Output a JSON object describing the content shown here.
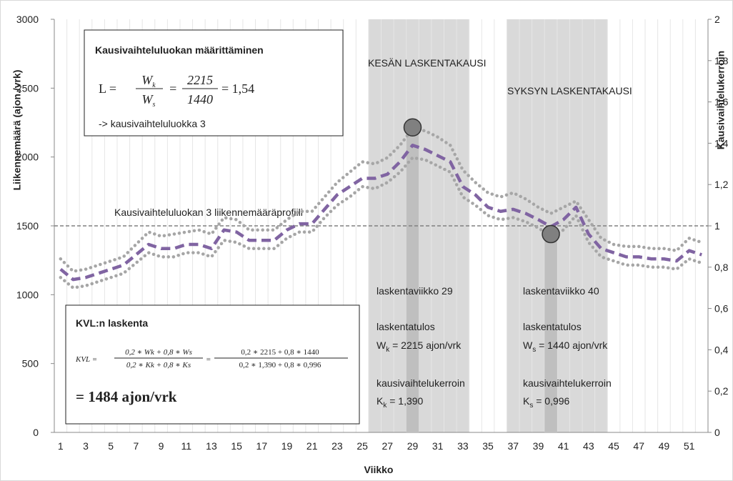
{
  "chart_data": {
    "type": "line",
    "xlabel": "Viikko",
    "ylabel": "Liikennemäärä (ajon./vrk)",
    "y2label": "Kausivaihtelukerroin",
    "categories": [
      1,
      null,
      3,
      null,
      5,
      null,
      7,
      null,
      9,
      null,
      11,
      null,
      13,
      null,
      15,
      null,
      17,
      null,
      19,
      null,
      21,
      null,
      23,
      null,
      25,
      null,
      27,
      null,
      29,
      null,
      31,
      null,
      33,
      null,
      35,
      null,
      37,
      null,
      39,
      null,
      41,
      null,
      43,
      null,
      45,
      null,
      47,
      null,
      49,
      null,
      51,
      null
    ],
    "ylim": [
      0,
      3000
    ],
    "yticks": [
      0,
      500,
      1000,
      1500,
      2000,
      2500,
      3000
    ],
    "y2lim": [
      0,
      2
    ],
    "y2ticks": [
      0,
      {
        "value": 0.2,
        "label": "0,2"
      },
      {
        "value": 0.4,
        "label": "0,4"
      },
      {
        "value": 0.6,
        "label": "0,6"
      },
      {
        "value": 0.8,
        "label": "0,8"
      },
      1,
      {
        "value": 1.2,
        "label": "1,2"
      },
      {
        "value": 1.4,
        "label": "1,4"
      },
      {
        "value": 1.6,
        "label": "1,6"
      },
      {
        "value": 1.8,
        "label": "1,8"
      },
      2
    ],
    "series": [
      {
        "color": "#a6a6a6",
        "style": "dotted",
        "axis": "y2",
        "values": [
          0.84,
          0.78,
          0.79,
          0.81,
          0.83,
          0.85,
          0.91,
          0.97,
          0.95,
          0.96,
          0.97,
          0.98,
          0.96,
          1.04,
          1.03,
          0.98,
          0.98,
          0.98,
          1.03,
          1.07,
          1.07,
          1.14,
          1.21,
          1.26,
          1.31,
          1.3,
          1.33,
          1.39,
          1.47,
          1.46,
          1.43,
          1.39,
          1.27,
          1.21,
          1.16,
          1.14,
          1.16,
          1.13,
          1.09,
          1.06,
          1.09,
          1.12,
          1.03,
          0.94,
          0.91,
          0.9,
          0.9,
          0.89,
          0.89,
          0.88,
          0.94,
          0.92
        ]
      },
      {
        "color": "#a6a6a6",
        "style": "dotted",
        "axis": "y2",
        "values": [
          0.75,
          0.7,
          0.71,
          0.73,
          0.75,
          0.77,
          0.82,
          0.87,
          0.85,
          0.85,
          0.87,
          0.87,
          0.85,
          0.93,
          0.92,
          0.89,
          0.89,
          0.89,
          0.94,
          0.97,
          0.97,
          1.04,
          1.1,
          1.14,
          1.19,
          1.18,
          1.21,
          1.26,
          1.33,
          1.32,
          1.29,
          1.26,
          1.14,
          1.1,
          1.05,
          1.03,
          1.04,
          1.02,
          0.99,
          0.95,
          0.98,
          1.05,
          0.92,
          0.85,
          0.83,
          0.81,
          0.81,
          0.8,
          0.8,
          0.79,
          0.84,
          0.82
        ]
      },
      {
        "color": "#8064a2",
        "style": "dashed",
        "axis": "y2",
        "values": [
          0.79,
          0.74,
          0.75,
          0.77,
          0.79,
          0.81,
          0.86,
          0.91,
          0.89,
          0.89,
          0.91,
          0.91,
          0.89,
          0.98,
          0.97,
          0.93,
          0.93,
          0.93,
          0.98,
          1.01,
          1.01,
          1.08,
          1.15,
          1.19,
          1.23,
          1.23,
          1.25,
          1.31,
          1.39,
          1.37,
          1.34,
          1.31,
          1.19,
          1.15,
          1.09,
          1.07,
          1.08,
          1.06,
          1.03,
          0.996,
          1.03,
          1.09,
          0.96,
          0.89,
          0.87,
          0.85,
          0.85,
          0.84,
          0.84,
          0.83,
          0.88,
          0.86
        ]
      }
    ],
    "counts": {
      "weeks": [
        29,
        40
      ],
      "values": [
        2215,
        1440
      ],
      "bar_color": "#bfbfbf",
      "marker_color": "#808080"
    },
    "highlight_weeks": [
      [
        26,
        33
      ],
      [
        37,
        44
      ]
    ],
    "highlight_color": "#d9d9d9",
    "reference": {
      "value": 1500,
      "label": "Kausivaihteluluokan 3 liikennemääräprofiili",
      "color": "#808080"
    },
    "season_labels": [
      "KESÄN LASKENTAKAUSI",
      "SYKSYN LASKENTAKAUSI"
    ],
    "box1": {
      "title": "Kausivaihteluluokan määrittäminen",
      "lhs": "L =",
      "num": [
        "W",
        "k"
      ],
      "den": [
        "W",
        "s"
      ],
      "eq": "=",
      "num2": "2215",
      "den2": "1440",
      "result": "= 1,54",
      "conclusion": "-> kausivaihteluluokka 3"
    },
    "box2": {
      "title": "KVL:n laskenta",
      "lhs": "KVL =",
      "num": "0,2 ∗ Wk + 0,8 ∗ Ws",
      "den": "0,2 ∗ Kk + 0,8 ∗ Ks",
      "eq": "=",
      "num2": "0,2 ∗ 2215 + 0,8 ∗ 1440",
      "den2": "0,2 ∗ 1,390 + 0,8 ∗ 0,996",
      "result": "= 1484 ajon/vrk"
    },
    "notes": [
      {
        "week_label": "laskentaviikko 29",
        "result_label": "laskentatulos",
        "w_symbol": "W",
        "w_sub": "k",
        "w_text": " = 2215 ajon/vrk",
        "k_label": "kausivaihtelukerroin",
        "k_symbol": "K",
        "k_sub": "k",
        "k_text": " = 1,390"
      },
      {
        "week_label": "laskentaviikko 40",
        "result_label": "laskentatulos",
        "w_symbol": "W",
        "w_sub": "s",
        "w_text": " = 1440 ajon/vrk",
        "k_label": "kausivaihtelukerroin",
        "k_symbol": "K",
        "k_sub": "s",
        "k_text": " = 0,996"
      }
    ]
  }
}
